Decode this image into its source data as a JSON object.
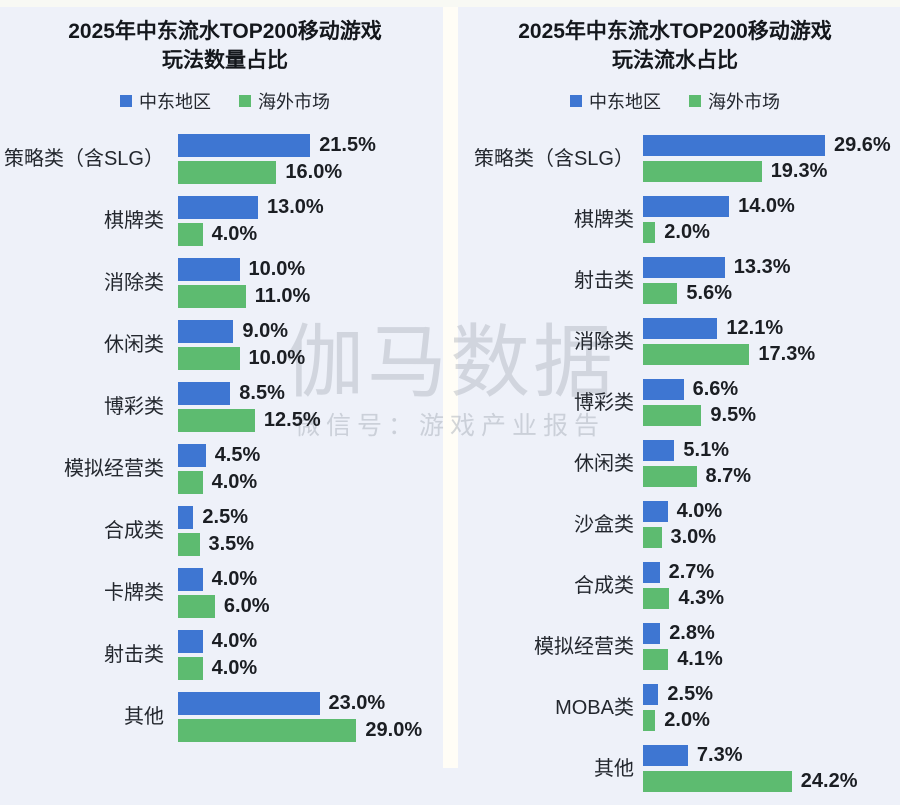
{
  "page": {
    "background_color": "#eef1f9",
    "divider_color": "#fffdf6"
  },
  "watermark": {
    "line1": "伽马数据",
    "line2": "微信号：游戏产业报告"
  },
  "colors": {
    "middle_east_blue": "#3e76d2",
    "overseas_green": "#5dbb70",
    "text_dark": "#1b1e23",
    "watermark_gray": "#aab0ba"
  },
  "chart_data": [
    {
      "type": "bar",
      "orientation": "horizontal",
      "title": "2025年中东流水TOP200移动游戏玩法数量占比",
      "title_line1": "2025年中东流水TOP200移动游戏",
      "title_line2": "玩法数量占比",
      "legend_position": "top",
      "value_suffix": "%",
      "xlim": [
        0,
        32
      ],
      "categories": [
        "策略类（含SLG）",
        "棋牌类",
        "消除类",
        "休闲类",
        "博彩类",
        "模拟经营类",
        "合成类",
        "卡牌类",
        "射击类",
        "其他"
      ],
      "series": [
        {
          "name": "中东地区",
          "color": "#3e76d2",
          "values": [
            21.5,
            13.0,
            10.0,
            9.0,
            8.5,
            4.5,
            2.5,
            4.0,
            4.0,
            23.0
          ]
        },
        {
          "name": "海外市场",
          "color": "#5dbb70",
          "values": [
            16.0,
            4.0,
            11.0,
            10.0,
            12.5,
            4.0,
            3.5,
            6.0,
            4.0,
            29.0
          ]
        }
      ]
    },
    {
      "type": "bar",
      "orientation": "horizontal",
      "title": "2025年中东流水TOP200移动游戏玩法流水占比",
      "title_line1": "2025年中东流水TOP200移动游戏",
      "title_line2": "玩法流水占比",
      "legend_position": "top",
      "value_suffix": "%",
      "xlim": [
        0,
        32
      ],
      "categories": [
        "策略类（含SLG）",
        "棋牌类",
        "射击类",
        "消除类",
        "博彩类",
        "休闲类",
        "沙盒类",
        "合成类",
        "模拟经营类",
        "MOBA类",
        "其他"
      ],
      "series": [
        {
          "name": "中东地区",
          "color": "#3e76d2",
          "values": [
            29.6,
            14.0,
            13.3,
            12.1,
            6.6,
            5.1,
            4.0,
            2.7,
            2.8,
            2.5,
            7.3
          ]
        },
        {
          "name": "海外市场",
          "color": "#5dbb70",
          "values": [
            19.3,
            2.0,
            5.6,
            17.3,
            9.5,
            8.7,
            3.0,
            4.3,
            4.1,
            2.0,
            24.2
          ]
        }
      ]
    }
  ]
}
